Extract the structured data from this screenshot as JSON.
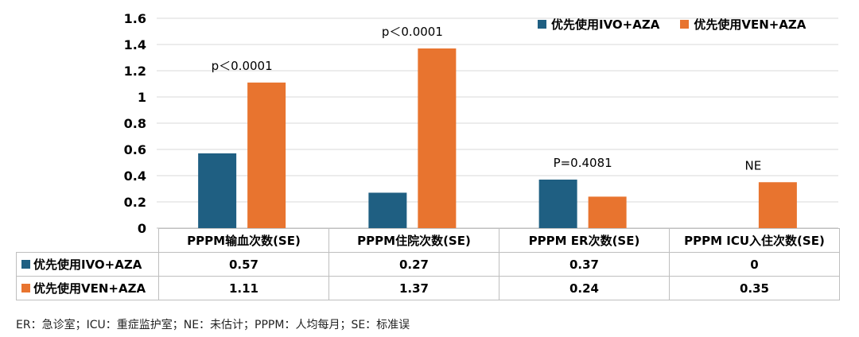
{
  "chart_data": {
    "type": "bar",
    "categories": [
      "PPPM输血次数(SE)",
      "PPPM住院次数(SE)",
      "PPPM ER次数(SE)",
      "PPPM ICU入住次数(SE)"
    ],
    "series": [
      {
        "name": "优先使用IVO+AZA",
        "values": [
          0.57,
          0.27,
          0.37,
          0
        ],
        "display": [
          "0.57",
          "0.27",
          "0.37",
          "0"
        ],
        "color": "#1f5f82"
      },
      {
        "name": "优先使用VEN+AZA",
        "values": [
          1.11,
          1.37,
          0.24,
          0.35
        ],
        "display": [
          "1.11",
          "1.37",
          "0.24",
          "0.35"
        ],
        "color": "#e8742f"
      }
    ],
    "annotations": [
      "p＜0.0001",
      "p＜0.0001",
      "P=0.4081",
      "NE"
    ],
    "yticks": [
      "0",
      "0.2",
      "0.4",
      "0.6",
      "0.8",
      "1",
      "1.2",
      "1.4",
      "1.6"
    ],
    "ylim": [
      0,
      1.6
    ],
    "grid": true,
    "legend": "top-right"
  },
  "footnote": "ER：急诊室；ICU：重症监护室；NE：未估计；PPPM：人均每月；SE：标准误"
}
